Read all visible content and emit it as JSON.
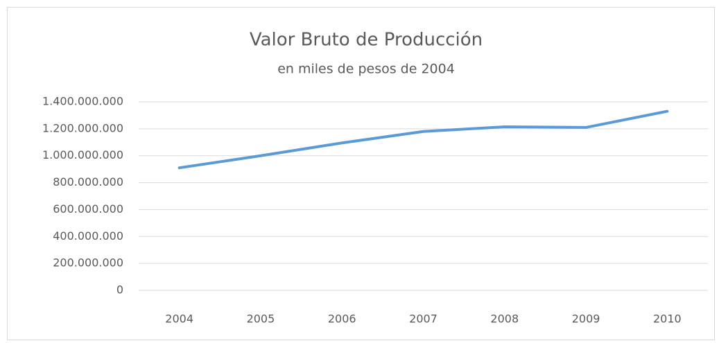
{
  "chart_data": {
    "type": "line",
    "title": "Valor Bruto de Producción",
    "subtitle": "en miles de pesos de 2004",
    "categories": [
      "2004",
      "2005",
      "2006",
      "2007",
      "2008",
      "2009",
      "2010"
    ],
    "series": [
      {
        "name": "Valor Bruto de Producción",
        "color": "#5b9bd5",
        "values": [
          910000000,
          1000000000,
          1095000000,
          1180000000,
          1215000000,
          1210000000,
          1330000000
        ]
      }
    ],
    "ylim": [
      0,
      1400000000
    ],
    "yticks": [
      0,
      {
        "value": 200000000,
        "label": "200.000.000"
      },
      {
        "value": 400000000,
        "label": "400.000.000"
      },
      {
        "value": 600000000,
        "label": "600.000.000"
      },
      {
        "value": 800000000,
        "label": "800.000.000"
      },
      {
        "value": 1000000000,
        "label": "1.000.000.000"
      },
      {
        "value": 1200000000,
        "label": "1.200.000.000"
      },
      {
        "value": 1400000000,
        "label": "1.400.000.000"
      }
    ],
    "grid": true,
    "legend": false
  }
}
